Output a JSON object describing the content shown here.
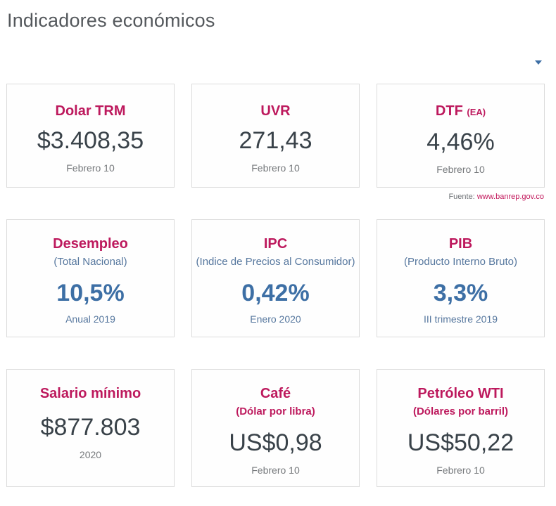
{
  "page": {
    "title": "Indicadores económicos"
  },
  "colors": {
    "accent_pink": "#bd195d",
    "accent_blue": "#3d6fa5",
    "value_dark": "#394249",
    "text_gray": "#76797c"
  },
  "icons": {
    "dropdown": "caret-down-icon"
  },
  "source": {
    "label": "Fuente:",
    "link_text": "www.banrep.gov.co"
  },
  "cards": [
    {
      "title": "Dolar TRM",
      "value": "$3.408,35",
      "period": "Febrero 10"
    },
    {
      "title": "UVR",
      "value": "271,43",
      "period": "Febrero 10"
    },
    {
      "title": "DTF",
      "title_suffix": "(EA)",
      "value": "4,46%",
      "period": "Febrero 10"
    },
    {
      "title": "Desempleo",
      "subtitle": "(Total Nacional)",
      "value": "10,5%",
      "period": "Anual 2019"
    },
    {
      "title": "IPC",
      "subtitle": "(Indice de Precios al Consumidor)",
      "value": "0,42%",
      "period": "Enero 2020"
    },
    {
      "title": "PIB",
      "subtitle": "(Producto Interno Bruto)",
      "value": "3,3%",
      "period": "III trimestre 2019"
    },
    {
      "title": "Salario mínimo",
      "value": "$877.803",
      "period": "2020"
    },
    {
      "title": "Café",
      "subtitle": "(Dólar por libra)",
      "value": "US$0,98",
      "period": "Febrero 10"
    },
    {
      "title": "Petróleo WTI",
      "subtitle": "(Dólares por barril)",
      "value": "US$50,22",
      "period": "Febrero 10"
    }
  ]
}
